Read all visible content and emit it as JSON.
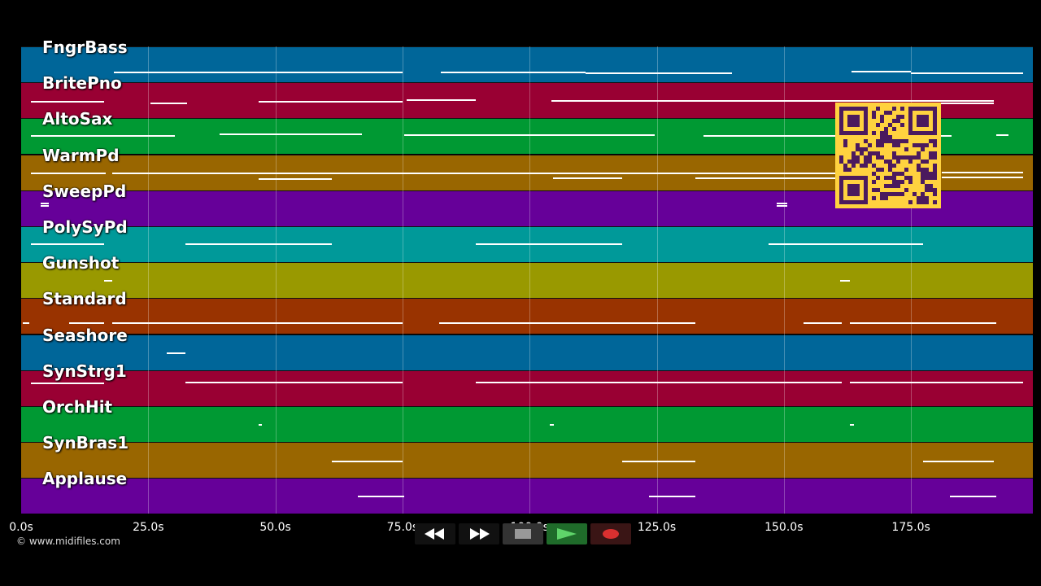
{
  "tracks": [
    {
      "name": "FngrBass",
      "color": "#006699"
    },
    {
      "name": "BritePno",
      "color": "#990033"
    },
    {
      "name": "AltoSax",
      "color": "#009933"
    },
    {
      "name": "WarmPd",
      "color": "#996600"
    },
    {
      "name": "SweepPd",
      "color": "#660099"
    },
    {
      "name": "PolySyPd",
      "color": "#009999"
    },
    {
      "name": "Gunshot",
      "color": "#999900"
    },
    {
      "name": "Standard",
      "color": "#993300"
    },
    {
      "name": "Seashore",
      "color": "#006699"
    },
    {
      "name": "SynStrg1",
      "color": "#990033"
    },
    {
      "name": "OrchHit",
      "color": "#009933"
    },
    {
      "name": "SynBras1",
      "color": "#996600"
    },
    {
      "name": "Applause",
      "color": "#660099"
    }
  ],
  "timeline": {
    "ticks": [
      "0.0s",
      "25.0s",
      "50.0s",
      "75.0s",
      "100.0s",
      "125.0s",
      "150.0s",
      "175.0s"
    ],
    "seconds_max": 199
  },
  "copyright": "© www.midifiles.com",
  "transport": [
    {
      "name": "rewind-button",
      "icon": "rewind-icon",
      "bg": "#111111"
    },
    {
      "name": "fast-forward-button",
      "icon": "fast-forward-icon",
      "bg": "#111111"
    },
    {
      "name": "stop-button",
      "icon": "stop-icon",
      "bg": "#333333"
    },
    {
      "name": "play-button",
      "icon": "play-icon",
      "bg": "#1f6b2a"
    },
    {
      "name": "record-button",
      "icon": "record-icon",
      "bg": "#3a1515"
    }
  ],
  "qr_code": {
    "icon": "qr-code-icon",
    "color": "#ffd23f",
    "ink": "#4b1a5e"
  }
}
